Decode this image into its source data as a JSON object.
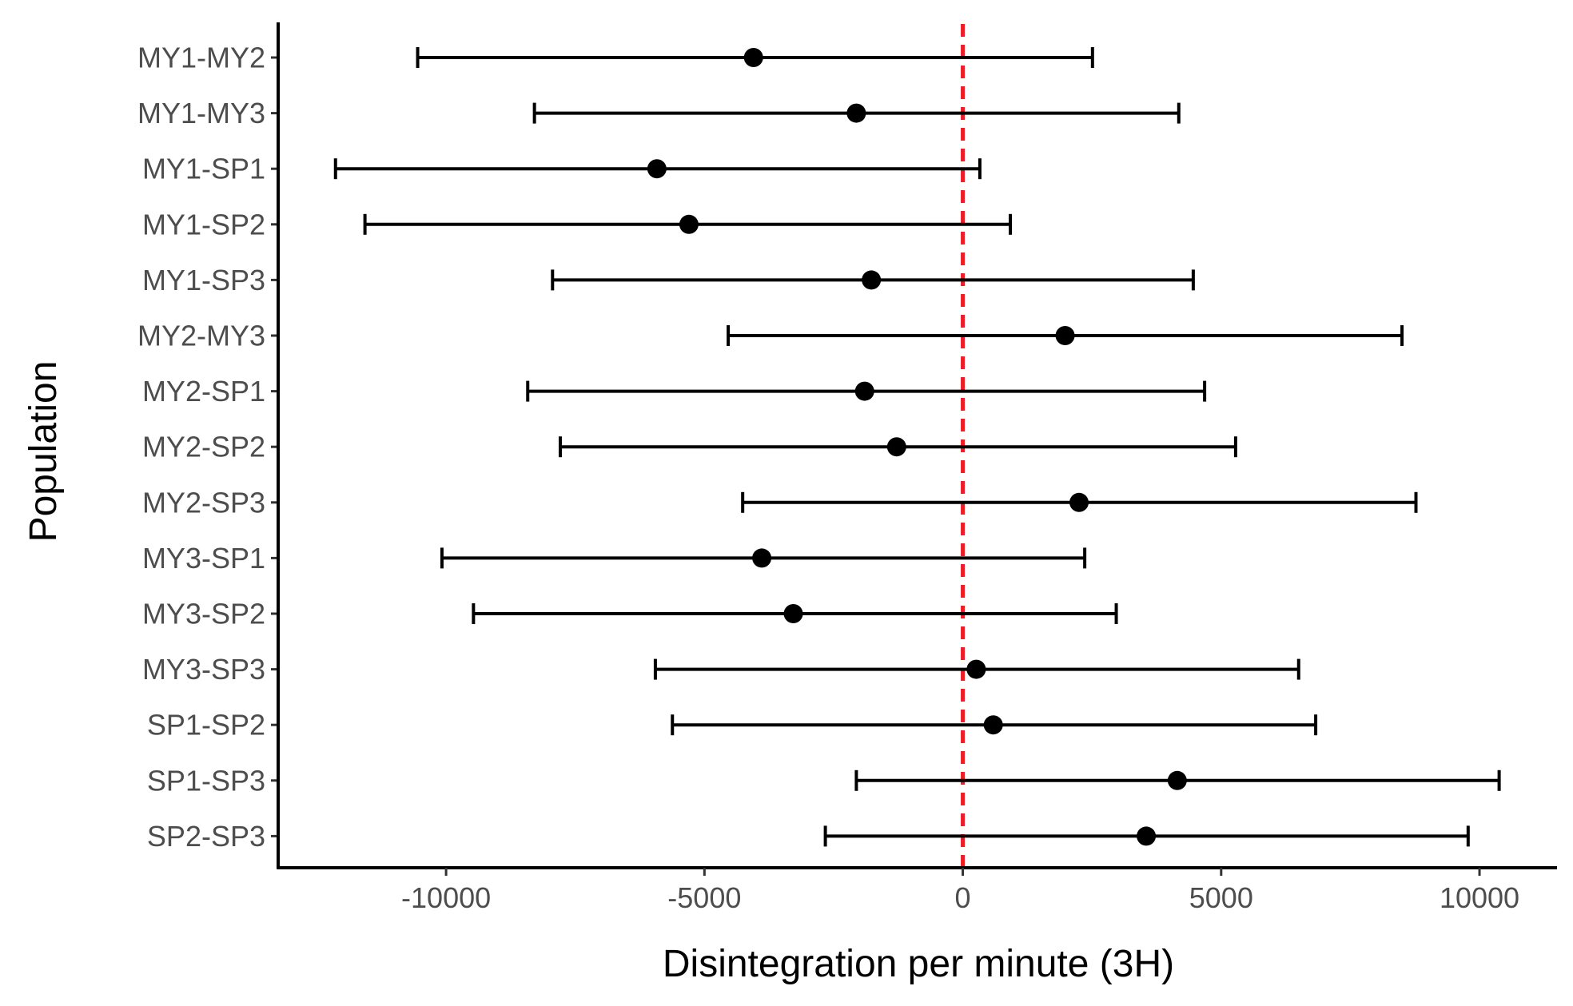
{
  "chart_data": {
    "type": "errorbar",
    "title": "",
    "xlabel": "Disintegration per minute (3H)",
    "ylabel": "Population",
    "xlim": [
      -13250,
      11500
    ],
    "xticks": [
      -10000,
      -5000,
      0,
      5000,
      10000
    ],
    "xtick_labels": [
      "-10000",
      "-5000",
      "0",
      "5000",
      "10000"
    ],
    "reference_line": {
      "x": 0,
      "color": "#ee1c25",
      "style": "dashed"
    },
    "grid": false,
    "legend": "none",
    "point_color": "#000000",
    "categories": [
      "MY1-MY2",
      "MY1-MY3",
      "MY1-SP1",
      "MY1-SP2",
      "MY1-SP3",
      "MY2-MY3",
      "MY2-SP1",
      "MY2-SP2",
      "MY2-SP3",
      "MY3-SP1",
      "MY3-SP2",
      "MY3-SP3",
      "SP1-SP2",
      "SP1-SP3",
      "SP2-SP3"
    ],
    "estimate": [
      -4050,
      -2060,
      -5920,
      -5300,
      -1770,
      1980,
      -1900,
      -1280,
      2250,
      -3890,
      -3280,
      260,
      590,
      4150,
      3550
    ],
    "lower": [
      -10550,
      -8290,
      -12140,
      -11570,
      -7940,
      -4540,
      -8420,
      -7790,
      -4260,
      -10080,
      -9470,
      -5950,
      -5620,
      -2060,
      -2660
    ],
    "upper": [
      2510,
      4180,
      330,
      920,
      4460,
      8500,
      4680,
      5280,
      8770,
      2360,
      2970,
      6500,
      6830,
      10380,
      9780
    ]
  }
}
